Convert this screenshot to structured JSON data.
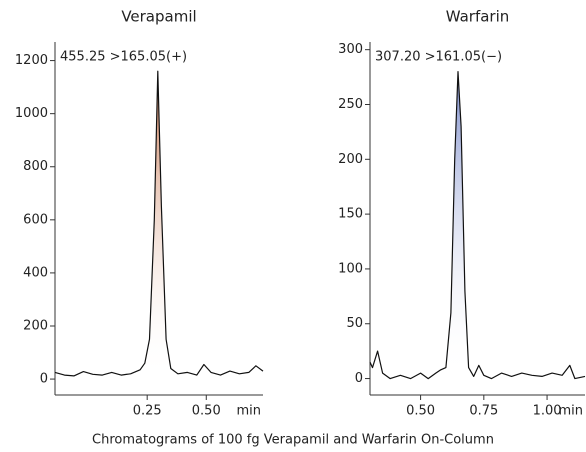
{
  "chart_data": [
    {
      "type": "line",
      "title": "Verapamil",
      "annotation": "455.25 >165.05(+)",
      "x_label": "min",
      "color": "#c9764f",
      "x": [
        -0.14,
        -0.1,
        -0.06,
        -0.02,
        0.02,
        0.06,
        0.1,
        0.14,
        0.18,
        0.22,
        0.24,
        0.26,
        0.28,
        0.295,
        0.31,
        0.33,
        0.35,
        0.38,
        0.42,
        0.46,
        0.49,
        0.52,
        0.56,
        0.6,
        0.64,
        0.68,
        0.71,
        0.74
      ],
      "values": [
        25,
        15,
        12,
        28,
        18,
        15,
        25,
        15,
        20,
        35,
        60,
        150,
        600,
        1160,
        650,
        150,
        40,
        20,
        25,
        15,
        55,
        25,
        15,
        30,
        20,
        25,
        50,
        30
      ],
      "xlim": [
        -0.14,
        0.74
      ],
      "ylim": [
        -60,
        1270
      ],
      "xticks": [
        0.25,
        {
          "value": 0.5,
          "label": "0.50"
        }
      ],
      "yticks": [
        0,
        200,
        400,
        600,
        800,
        1000,
        1200
      ]
    },
    {
      "type": "line",
      "title": "Warfarin",
      "annotation": "307.20 >161.05(−)",
      "x_label": "min",
      "color": "#7f8fcc",
      "x": [
        0.3,
        0.31,
        0.33,
        0.35,
        0.38,
        0.42,
        0.46,
        0.5,
        0.53,
        0.56,
        0.58,
        0.6,
        0.62,
        0.635,
        0.648,
        0.66,
        0.675,
        0.69,
        0.71,
        0.73,
        0.75,
        0.78,
        0.82,
        0.86,
        0.9,
        0.94,
        0.98,
        1.02,
        1.06,
        1.09,
        1.11,
        1.15
      ],
      "values": [
        15,
        10,
        25,
        5,
        0,
        3,
        0,
        5,
        0,
        5,
        8,
        10,
        60,
        200,
        280,
        230,
        80,
        10,
        2,
        12,
        3,
        0,
        5,
        2,
        5,
        3,
        2,
        5,
        3,
        12,
        0,
        2
      ],
      "xlim": [
        0.3,
        1.15
      ],
      "ylim": [
        -15,
        307
      ],
      "xticks": [
        {
          "value": 0.5,
          "label": "0.50"
        },
        0.75,
        {
          "value": 1.0,
          "label": "1.00"
        }
      ],
      "yticks": [
        0,
        50,
        100,
        150,
        200,
        250,
        300
      ]
    }
  ],
  "caption": "Chromatograms of 100 fg Verapamil and Warfarin On-Column"
}
